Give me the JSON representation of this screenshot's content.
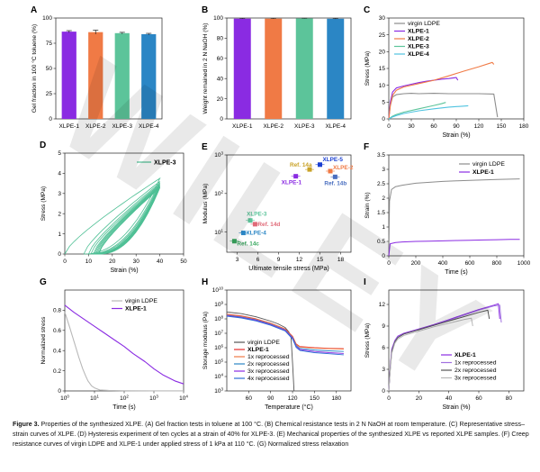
{
  "watermark": "WILEY",
  "caption": {
    "label": "Figure 3.",
    "text": " Properties of the synthesized XLPE. (A) Gel fraction tests in toluene at 100 °C. (B) Chemical resistance tests in 2 N NaOH at room temperature. (C) Representative stress–strain curves of XLPE. (D) Hysteresis experiment of ten cycles at a strain of 40% for XLPE-3. (E) Mechanical properties of the synthesized XLPE vs reported XLPE samples. (F) Creep resistance curves of virgin LDPE and XLPE-1 under applied stress of 1 kPa at 110 °C. (G) Normalized stress relaxation"
  },
  "colors": {
    "purple": "#8a2be2",
    "orange": "#f07a45",
    "green": "#5cc49a",
    "blue": "#2b86c5",
    "gray": "#8c8c8c",
    "darkgray": "#555555",
    "lightgray": "#b8b8b8",
    "red": "#e52b2b",
    "cyan": "#4fc3e0",
    "hysteresis": "#4dbf94"
  },
  "chart_data": [
    {
      "panel": "A",
      "type": "bar",
      "ylabel": "Gel fraction in 100 °C toluene (%)",
      "categories": [
        "XLPE-1",
        "XLPE-2",
        "XLPE-3",
        "XLPE-4"
      ],
      "values": [
        86.5,
        86,
        85,
        84
      ],
      "errors": [
        1.0,
        2.0,
        0.8,
        0.8
      ],
      "ylim": [
        0,
        100
      ],
      "yticks": [
        0,
        25,
        50,
        75,
        100
      ]
    },
    {
      "panel": "B",
      "type": "bar",
      "ylabel": "Weight remained in 2 N NaOH (%)",
      "categories": [
        "XLPE-1",
        "XLPE-2",
        "XLPE-3",
        "XLPE-4"
      ],
      "values": [
        99.4,
        99.4,
        99.6,
        99.3
      ],
      "errors": [
        0.3,
        0.3,
        0.2,
        0.3
      ],
      "ylim": [
        0,
        100
      ],
      "yticks": [
        0,
        20,
        40,
        60,
        80,
        100
      ]
    },
    {
      "panel": "C",
      "type": "line",
      "xlabel": "Strain (%)",
      "ylabel": "Stress (MPa)",
      "xlim": [
        0,
        180
      ],
      "ylim": [
        0,
        30
      ],
      "xticks": [
        0,
        30,
        60,
        90,
        120,
        150,
        180
      ],
      "yticks": [
        0,
        5,
        10,
        15,
        20,
        25,
        30
      ],
      "series": [
        {
          "name": "virgin LDPE",
          "color": "gray",
          "x": [
            0,
            2,
            5,
            10,
            20,
            30,
            40,
            60,
            80,
            100,
            120,
            140,
            145
          ],
          "y": [
            0,
            4,
            6.5,
            7.2,
            7.5,
            7.6,
            7.5,
            7.6,
            7.5,
            7.5,
            7.5,
            7.4,
            0.5
          ]
        },
        {
          "name": "XLPE-1",
          "color": "purple",
          "x": [
            0,
            2,
            5,
            10,
            20,
            30,
            40,
            50,
            60,
            70,
            80,
            90,
            92
          ],
          "y": [
            0,
            5,
            8,
            9.2,
            9.8,
            10.3,
            10.8,
            11.2,
            11.5,
            11.8,
            12.0,
            12.3,
            11.5
          ]
        },
        {
          "name": "XLPE-2",
          "color": "orange",
          "x": [
            0,
            2,
            5,
            10,
            20,
            40,
            60,
            80,
            100,
            120,
            138,
            140
          ],
          "y": [
            0,
            4,
            7,
            8.5,
            9.5,
            10.5,
            11.5,
            12.8,
            14.2,
            15.5,
            16.8,
            16.2
          ]
        },
        {
          "name": "XLPE-3",
          "color": "green",
          "x": [
            0,
            5,
            10,
            20,
            40,
            60,
            70,
            76
          ],
          "y": [
            0,
            0.8,
            1.3,
            2.0,
            3.0,
            4.0,
            4.5,
            4.9
          ]
        },
        {
          "name": "XLPE-4",
          "color": "cyan",
          "x": [
            0,
            5,
            10,
            20,
            40,
            60,
            80,
            100,
            106
          ],
          "y": [
            0,
            0.6,
            1.0,
            1.6,
            2.4,
            3.0,
            3.5,
            3.8,
            3.9
          ]
        }
      ]
    },
    {
      "panel": "D",
      "type": "line",
      "xlabel": "Strain (%)",
      "ylabel": "Stress (MPa)",
      "xlim": [
        0,
        50
      ],
      "ylim": [
        0,
        5
      ],
      "xticks": [
        0,
        10,
        20,
        30,
        40,
        50
      ],
      "yticks": [
        0,
        1,
        2,
        3,
        4,
        5
      ],
      "legend": "XLPE-3",
      "cycles": 10,
      "peak_stress": [
        3.75,
        3.6,
        3.52,
        3.46,
        3.42,
        3.38,
        3.35,
        3.32,
        3.3,
        3.28
      ],
      "residual_strain": [
        8,
        10,
        11,
        12,
        12.5,
        13,
        13.5,
        14,
        14.3,
        14.6
      ]
    },
    {
      "panel": "E",
      "type": "scatter",
      "xlabel": "Ultimate tensile stress (MPa)",
      "ylabel": "Modulus (MPa)",
      "xlim": [
        1.5,
        19.5
      ],
      "xticks": [
        3,
        6,
        9,
        12,
        15,
        18
      ],
      "ylog": true,
      "ylim": [
        3,
        1000
      ],
      "yticks": [
        "10^1",
        "10^2",
        "10^3"
      ],
      "points": [
        {
          "label": "XLPE-5",
          "x": 15.0,
          "y": 560,
          "color": "#1a3fd1"
        },
        {
          "label": "Ref. 14a",
          "x": 13.5,
          "y": 420,
          "color": "#c9a227"
        },
        {
          "label": "XLPE-2",
          "x": 16.5,
          "y": 380,
          "color": "#f07a45"
        },
        {
          "label": "XLPE-1",
          "x": 11.5,
          "y": 280,
          "color": "#8a2be2"
        },
        {
          "label": "Ref. 14b",
          "x": 17.2,
          "y": 270,
          "color": "#4a6fc0"
        },
        {
          "label": "XLPE-3",
          "x": 4.9,
          "y": 20,
          "color": "#5cc49a"
        },
        {
          "label": "Ref. 14d",
          "x": 5.6,
          "y": 16,
          "color": "#e06a78"
        },
        {
          "label": "XLPE-4",
          "x": 3.9,
          "y": 9.5,
          "color": "#2b86c5"
        },
        {
          "label": "Ref. 14c",
          "x": 2.6,
          "y": 5.8,
          "color": "#3aa860"
        }
      ]
    },
    {
      "panel": "F",
      "type": "line",
      "xlabel": "Time (s)",
      "ylabel": "Strain (%)",
      "xlim": [
        0,
        1000
      ],
      "ylim": [
        0,
        3.5
      ],
      "xticks": [
        0,
        200,
        400,
        600,
        800,
        1000
      ],
      "yticks": [
        0,
        0.5,
        1,
        1.5,
        2,
        2.5,
        3,
        3.5
      ],
      "series": [
        {
          "name": "virgin LDPE",
          "color": "gray",
          "x": [
            0,
            5,
            20,
            50,
            100,
            200,
            300,
            400,
            500,
            600,
            700,
            800,
            900,
            970
          ],
          "y": [
            0,
            1.9,
            2.3,
            2.4,
            2.45,
            2.52,
            2.55,
            2.58,
            2.6,
            2.62,
            2.63,
            2.65,
            2.66,
            2.67
          ]
        },
        {
          "name": "XLPE-1",
          "color": "purple",
          "x": [
            0,
            10,
            50,
            100,
            200,
            300,
            400,
            500,
            600,
            700,
            800,
            900,
            970
          ],
          "y": [
            0,
            0.42,
            0.46,
            0.48,
            0.5,
            0.51,
            0.52,
            0.53,
            0.54,
            0.55,
            0.56,
            0.57,
            0.57
          ]
        }
      ]
    },
    {
      "panel": "G",
      "type": "line",
      "xlabel": "Time (s)",
      "ylabel": "Normalized stress",
      "xlog": true,
      "xlim": [
        1,
        10000
      ],
      "ylim": [
        0,
        1.0
      ],
      "xticks": [
        "10^0",
        "10^1",
        "10^2",
        "10^3",
        "10^4"
      ],
      "yticks": [
        0,
        0.2,
        0.4,
        0.6,
        0.8
      ],
      "series": [
        {
          "name": "virgin LDPE",
          "color": "lightgray",
          "x": [
            1,
            1.5,
            2,
            3,
            4,
            5,
            6,
            8,
            10,
            15,
            30,
            100,
            1000,
            10000
          ],
          "y": [
            0.78,
            0.62,
            0.5,
            0.33,
            0.22,
            0.15,
            0.1,
            0.05,
            0.03,
            0.01,
            0.005,
            0.002,
            0.001,
            0.001
          ]
        },
        {
          "name": "XLPE-1",
          "color": "purple",
          "x": [
            1,
            2,
            5,
            10,
            20,
            50,
            100,
            200,
            500,
            1000,
            2000,
            5000,
            10000
          ],
          "y": [
            0.85,
            0.78,
            0.7,
            0.64,
            0.58,
            0.5,
            0.44,
            0.37,
            0.29,
            0.22,
            0.16,
            0.1,
            0.07
          ]
        }
      ]
    },
    {
      "panel": "H",
      "type": "line",
      "xlabel": "Temperature (°C)",
      "ylabel": "Storage modulus (Pa)",
      "xlim": [
        30,
        200
      ],
      "xticks": [
        60,
        90,
        120,
        150,
        180
      ],
      "ylog": true,
      "ylim": [
        1000,
        10000000000
      ],
      "yticks": [
        "10^3",
        "10^4",
        "10^5",
        "10^6",
        "10^7",
        "10^8",
        "10^9",
        "10^10"
      ],
      "series": [
        {
          "name": "virgin LDPE",
          "color": "darkgray",
          "x": [
            30,
            50,
            70,
            90,
            100,
            110,
            115,
            118,
            120,
            122
          ],
          "y": [
            300000000.0,
            230000000.0,
            140000000.0,
            70000000.0,
            45000000.0,
            25000000.0,
            12000000.0,
            5000000.0,
            80000.0,
            1000.0
          ]
        },
        {
          "name": "XLPE-1",
          "color": "red",
          "x": [
            30,
            50,
            70,
            90,
            110,
            120,
            125,
            130,
            150,
            170,
            190
          ],
          "y": [
            210000000.0,
            160000000.0,
            100000000.0,
            50000000.0,
            20000000.0,
            6000000.0,
            1800000.0,
            1200000.0,
            1000000.0,
            900000.0,
            850000.0
          ]
        },
        {
          "name": "1x reprocessed",
          "color": "orange",
          "x": [
            30,
            50,
            70,
            90,
            110,
            120,
            125,
            130,
            150,
            170,
            190
          ],
          "y": [
            200000000.0,
            150000000.0,
            95000000.0,
            48000000.0,
            19000000.0,
            5500000.0,
            1600000.0,
            1100000.0,
            950000.0,
            850000.0,
            800000.0
          ]
        },
        {
          "name": "2x reprocessed",
          "color": "blue",
          "x": [
            30,
            50,
            70,
            90,
            110,
            120,
            125,
            130,
            150,
            170,
            190
          ],
          "y": [
            180000000.0,
            135000000.0,
            85000000.0,
            43000000.0,
            17000000.0,
            5000000.0,
            1400000.0,
            900000.0,
            700000.0,
            600000.0,
            550000.0
          ]
        },
        {
          "name": "3x reprocessed",
          "color": "purple",
          "x": [
            30,
            50,
            70,
            90,
            110,
            120,
            125,
            130,
            150,
            170,
            190
          ],
          "y": [
            170000000.0,
            125000000.0,
            80000000.0,
            40000000.0,
            16000000.0,
            4500000.0,
            1200000.0,
            750000.0,
            550000.0,
            450000.0,
            400000.0
          ]
        },
        {
          "name": "4x reprocessed",
          "color": "#2d6fd6",
          "x": [
            30,
            50,
            70,
            90,
            110,
            120,
            125,
            130,
            150,
            170,
            190
          ],
          "y": [
            155000000.0,
            115000000.0,
            72000000.0,
            36000000.0,
            14500000.0,
            4000000.0,
            1050000.0,
            650000.0,
            450000.0,
            380000.0,
            320000.0
          ]
        }
      ]
    },
    {
      "panel": "I",
      "type": "line",
      "xlabel": "Strain (%)",
      "ylabel": "Stress (MPa)",
      "xlim": [
        0,
        90
      ],
      "ylim": [
        0,
        14
      ],
      "xticks": [
        0,
        20,
        40,
        60,
        80
      ],
      "yticks": [
        0,
        3,
        6,
        9,
        12
      ],
      "series": [
        {
          "name": "XLPE-1",
          "color": "purple",
          "x": [
            0,
            1,
            2,
            4,
            6,
            10,
            20,
            30,
            40,
            50,
            60,
            70,
            73,
            74
          ],
          "y": [
            0,
            3.5,
            5.8,
            7.0,
            7.6,
            8.0,
            8.6,
            9.2,
            9.9,
            10.6,
            11.3,
            11.9,
            12.1,
            10.0
          ]
        },
        {
          "name": "1x reprocessed",
          "color": "#a070e0",
          "x": [
            0,
            1,
            2,
            4,
            6,
            10,
            20,
            30,
            40,
            50,
            60,
            70,
            74,
            75
          ],
          "y": [
            0,
            3.3,
            5.6,
            6.9,
            7.5,
            7.9,
            8.5,
            9.1,
            9.8,
            10.5,
            11.2,
            11.8,
            11.9,
            9.5
          ]
        },
        {
          "name": "2x reprocessed",
          "color": "darkgray",
          "x": [
            0,
            1,
            2,
            4,
            6,
            10,
            20,
            30,
            40,
            50,
            60,
            66,
            67
          ],
          "y": [
            0,
            3.2,
            5.5,
            6.8,
            7.4,
            7.9,
            8.5,
            9.1,
            9.7,
            10.3,
            10.9,
            11.2,
            10.0
          ]
        },
        {
          "name": "3x reprocessed",
          "color": "lightgray",
          "x": [
            0,
            1,
            2,
            4,
            6,
            10,
            20,
            30,
            40,
            50,
            55,
            56
          ],
          "y": [
            0,
            3.0,
            5.2,
            6.6,
            7.2,
            7.7,
            8.3,
            8.9,
            9.4,
            9.9,
            10.1,
            9.0
          ]
        }
      ]
    }
  ]
}
